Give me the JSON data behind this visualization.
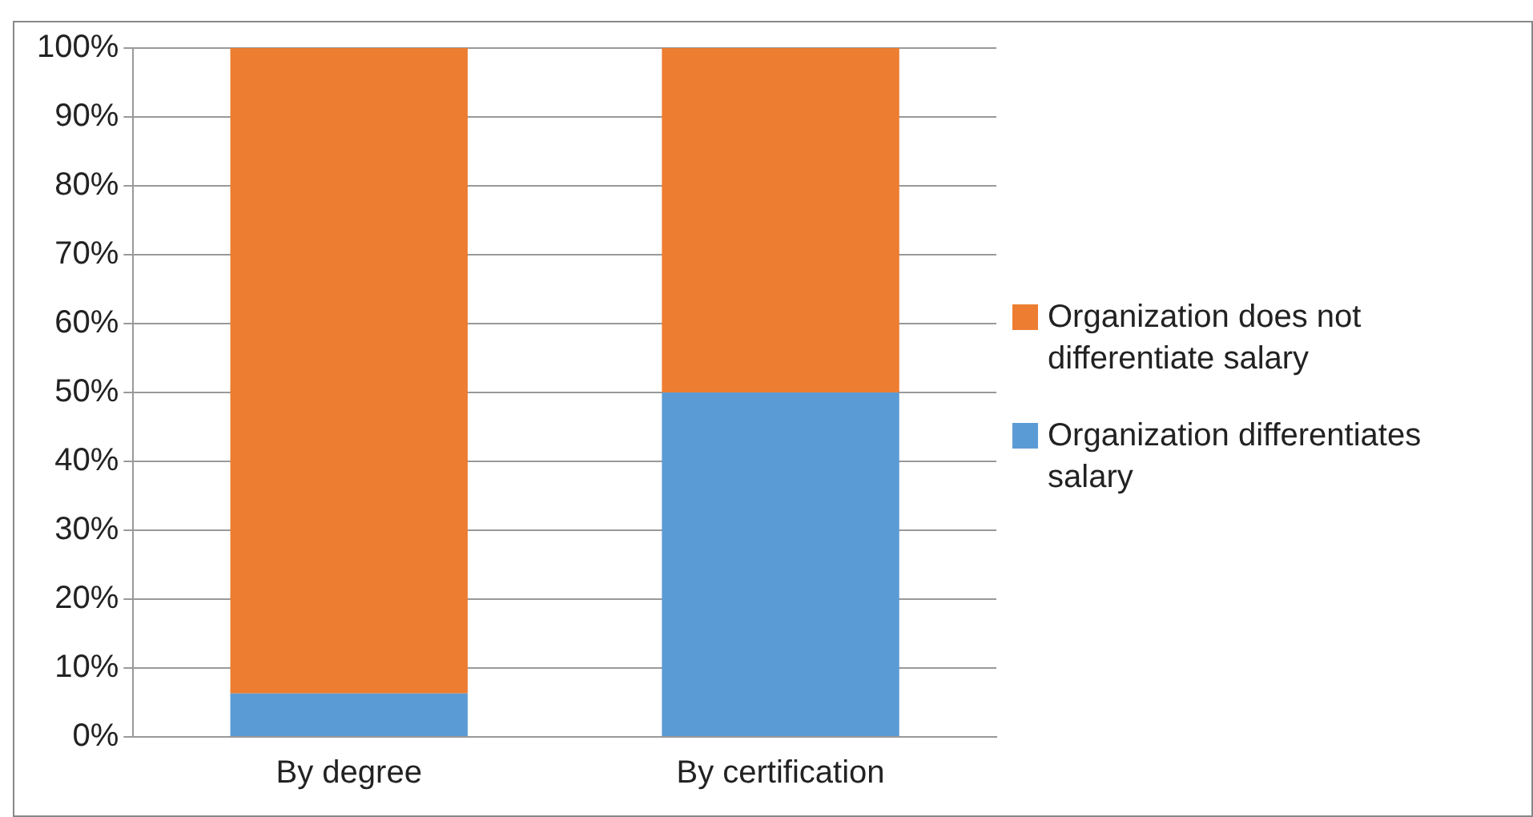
{
  "chart_data": {
    "type": "bar",
    "stacked": true,
    "categories": [
      "By degree",
      "By certification"
    ],
    "series": [
      {
        "name": "Organization differentiates salary",
        "color": "#5b9bd5",
        "values": [
          6.3,
          50
        ]
      },
      {
        "name": "Organization does not differentiate salary",
        "color": "#ed7d31",
        "values": [
          93.7,
          50
        ]
      }
    ],
    "ylim": [
      0,
      100
    ],
    "yticks": [
      {
        "value": 0,
        "label": "0%"
      },
      {
        "value": 10,
        "label": "10%"
      },
      {
        "value": 20,
        "label": "20%"
      },
      {
        "value": 30,
        "label": "30%"
      },
      {
        "value": 40,
        "label": "40%"
      },
      {
        "value": 50,
        "label": "50%"
      },
      {
        "value": 60,
        "label": "60%"
      },
      {
        "value": 70,
        "label": "70%"
      },
      {
        "value": 80,
        "label": "80%"
      },
      {
        "value": 90,
        "label": "90%"
      },
      {
        "value": 100,
        "label": "100%"
      }
    ],
    "grid": "y",
    "legend": "right"
  }
}
